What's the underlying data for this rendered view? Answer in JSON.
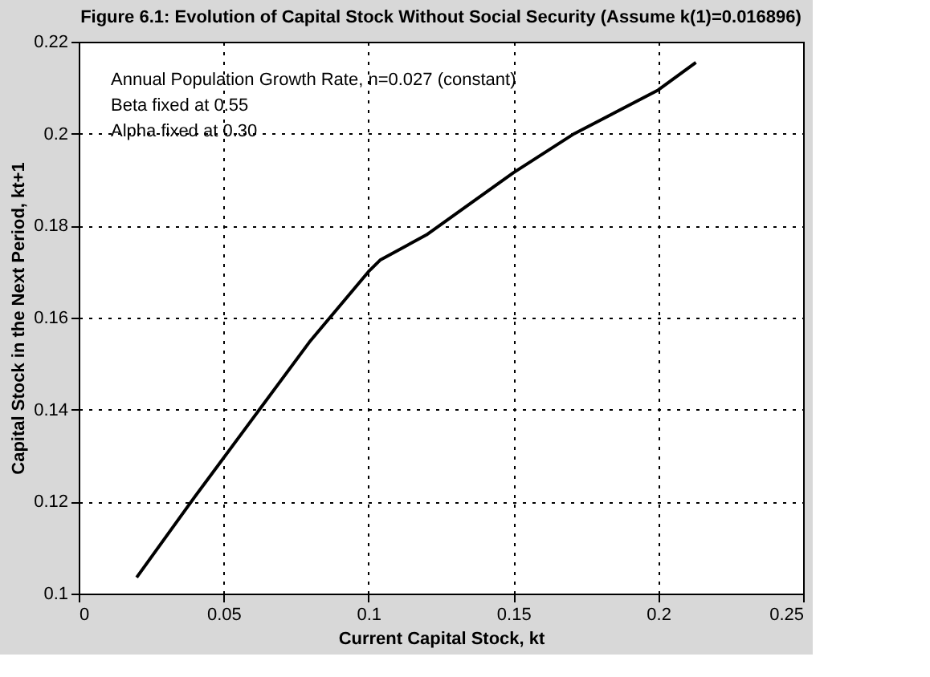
{
  "chart_data": {
    "type": "line",
    "title": "Figure 6.1: Evolution of Capital Stock Without Social Security (Assume k(1)=0.016896)",
    "xlabel": "Current Capital Stock, kt",
    "ylabel": "Capital Stock in the Next Period, kt+1",
    "x": [
      0.02,
      0.04,
      0.06,
      0.08,
      0.1,
      0.104,
      0.12,
      0.15,
      0.171,
      0.2,
      0.213
    ],
    "series": [
      {
        "color": "#000000",
        "values": [
          0.1035,
          0.121,
          0.138,
          0.155,
          0.17,
          0.1725,
          0.178,
          0.1915,
          0.2,
          0.2095,
          0.2155
        ]
      }
    ],
    "xlim": [
      0,
      0.25
    ],
    "xticks": [
      0,
      0.05,
      0.1,
      0.15,
      0.2,
      0.25
    ],
    "ylim": [
      0.1,
      0.22
    ],
    "yticks": [
      0.1,
      0.12,
      0.14,
      0.16,
      0.18,
      0.2,
      0.22
    ],
    "grid": true,
    "line_style": "solid",
    "marker": "none",
    "annotations": [
      "Annual Population Growth Rate, n=0.027 (constant)",
      "Beta fixed at 0.55",
      "Alpha fixed at 0.30"
    ]
  }
}
